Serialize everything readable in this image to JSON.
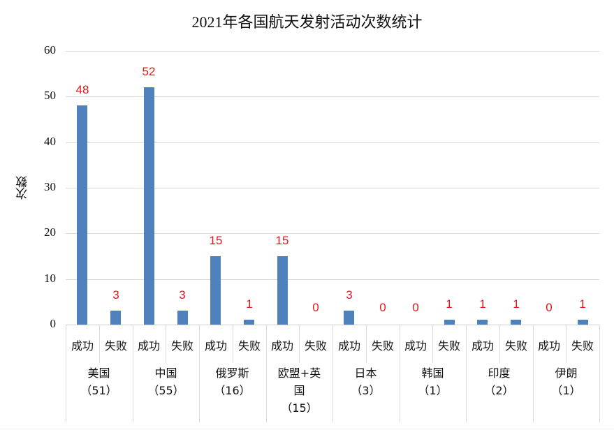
{
  "chart_data": {
    "type": "bar",
    "title": "2021年各国航天发射活动次数统计",
    "xlabel": "",
    "ylabel": "次数",
    "ylim": [
      0,
      60
    ],
    "yticks": [
      "0",
      "10",
      "20",
      "30",
      "40",
      "50",
      "60"
    ],
    "grid": true,
    "legend": null,
    "bar_color": "#4f81bd",
    "label_color": "#e8141c",
    "groups": [
      {
        "name": "美国",
        "total": "（51）",
        "subcategories": [
          "成功",
          "失败"
        ],
        "values": [
          48,
          3
        ]
      },
      {
        "name": "中国",
        "total": "（55）",
        "subcategories": [
          "成功",
          "失败"
        ],
        "values": [
          52,
          3
        ]
      },
      {
        "name": "俄罗斯",
        "total": "（16）",
        "subcategories": [
          "成功",
          "失败"
        ],
        "values": [
          15,
          1
        ]
      },
      {
        "name": "欧盟+英国",
        "total": "（15）",
        "subcategories": [
          "成功",
          "失败"
        ],
        "values": [
          15,
          0
        ]
      },
      {
        "name": "日本",
        "total": "（3）",
        "subcategories": [
          "成功",
          "失败"
        ],
        "values": [
          3,
          0
        ]
      },
      {
        "name": "韩国",
        "total": "（1）",
        "subcategories": [
          "成功",
          "失败"
        ],
        "values": [
          0,
          1
        ]
      },
      {
        "name": "印度",
        "total": "（2）",
        "subcategories": [
          "成功",
          "失败"
        ],
        "values": [
          1,
          1
        ]
      },
      {
        "name": "伊朗",
        "total": "（1）",
        "subcategories": [
          "成功",
          "失败"
        ],
        "values": [
          0,
          1
        ]
      }
    ],
    "categories": [
      "美国-成功",
      "美国-失败",
      "中国-成功",
      "中国-失败",
      "俄罗斯-成功",
      "俄罗斯-失败",
      "欧盟+英国-成功",
      "欧盟+英国-失败",
      "日本-成功",
      "日本-失败",
      "韩国-成功",
      "韩国-失败",
      "印度-成功",
      "印度-失败",
      "伊朗-成功",
      "伊朗-失败"
    ],
    "values": [
      48,
      3,
      52,
      3,
      15,
      1,
      15,
      0,
      3,
      0,
      0,
      1,
      1,
      1,
      0,
      1
    ]
  }
}
